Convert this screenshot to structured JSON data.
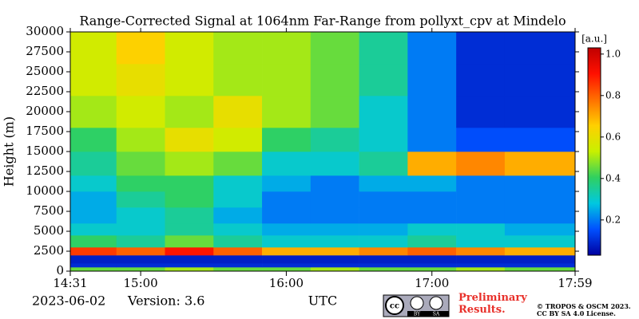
{
  "chart_data": {
    "type": "heatmap",
    "title": "Range-Corrected Signal at 1064nm Far-Range from pollyxt_cpv at Mindelo",
    "y_label": "Height (m)",
    "x_label": "UTC",
    "date": "2023-06-02",
    "version": "Version: 3.6",
    "colorbar_label": "[a.u.]",
    "x_edges": [
      "14:31",
      "14:50",
      "15:10",
      "15:30",
      "15:50",
      "16:10",
      "16:30",
      "16:50",
      "17:10",
      "17:30",
      "17:59"
    ],
    "y_edges": [
      0,
      500,
      1000,
      2000,
      3000,
      4500,
      6000,
      8000,
      10000,
      12000,
      15000,
      18000,
      22000,
      26000,
      30000
    ],
    "z": [
      [
        0.45,
        0.45,
        0.5,
        0.45,
        0.45,
        0.5,
        0.45,
        0.45,
        0.5,
        0.45
      ],
      [
        0.1,
        0.1,
        0.1,
        0.1,
        0.1,
        0.1,
        0.1,
        0.1,
        0.1,
        0.1
      ],
      [
        0.08,
        0.08,
        0.08,
        0.08,
        0.08,
        0.08,
        0.08,
        0.08,
        0.08,
        0.08
      ],
      [
        0.85,
        0.8,
        0.9,
        0.8,
        0.7,
        0.7,
        0.75,
        0.8,
        0.75,
        0.7
      ],
      [
        0.4,
        0.35,
        0.45,
        0.35,
        0.3,
        0.3,
        0.3,
        0.35,
        0.3,
        0.3
      ],
      [
        0.3,
        0.3,
        0.35,
        0.3,
        0.25,
        0.25,
        0.25,
        0.3,
        0.3,
        0.25
      ],
      [
        0.25,
        0.3,
        0.35,
        0.25,
        0.2,
        0.2,
        0.2,
        0.2,
        0.2,
        0.2
      ],
      [
        0.25,
        0.35,
        0.4,
        0.3,
        0.2,
        0.2,
        0.2,
        0.2,
        0.2,
        0.2
      ],
      [
        0.3,
        0.4,
        0.4,
        0.3,
        0.25,
        0.2,
        0.25,
        0.25,
        0.2,
        0.2
      ],
      [
        0.35,
        0.45,
        0.5,
        0.45,
        0.3,
        0.3,
        0.35,
        0.7,
        0.75,
        0.7
      ],
      [
        0.4,
        0.5,
        0.6,
        0.55,
        0.4,
        0.35,
        0.3,
        0.2,
        0.15,
        0.15
      ],
      [
        0.5,
        0.55,
        0.5,
        0.6,
        0.5,
        0.45,
        0.3,
        0.2,
        0.1,
        0.1
      ],
      [
        0.55,
        0.6,
        0.55,
        0.5,
        0.5,
        0.45,
        0.35,
        0.2,
        0.1,
        0.1
      ],
      [
        0.55,
        0.65,
        0.55,
        0.5,
        0.5,
        0.45,
        0.35,
        0.2,
        0.1,
        0.1
      ]
    ],
    "xlim": [
      "14:31",
      "17:59"
    ],
    "xticks": [
      "14:31",
      "15:00",
      "16:00",
      "17:00",
      "17:59"
    ],
    "ylim": [
      0,
      30000
    ],
    "yticks": [
      0,
      2500,
      5000,
      7500,
      10000,
      12500,
      15000,
      17500,
      20000,
      22500,
      25000,
      27500,
      30000
    ],
    "clim": [
      0.03,
      1.03
    ],
    "cticks": [
      0.2,
      0.4,
      0.6,
      0.8,
      {
        "value": 1,
        "label": "1.0"
      }
    ],
    "colormap": [
      "#0000a0",
      "#0050ff",
      "#00c8e0",
      "#30d060",
      "#c8f000",
      "#ffd000",
      "#ff7000",
      "#ff1000",
      "#c00000"
    ],
    "notice": "Preliminary Results.",
    "license_lines": [
      "© TROPOS & OSCM 2023.",
      "CC BY SA 4.0 License."
    ],
    "badge": [
      "cc",
      "BY",
      "SA"
    ]
  }
}
